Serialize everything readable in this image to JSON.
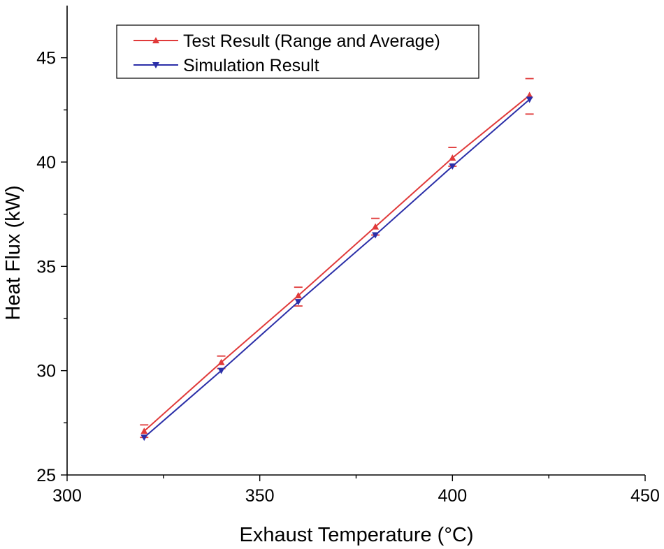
{
  "chart_data": {
    "type": "line",
    "title": "",
    "xlabel": "Exhaust Temperature (°C)",
    "ylabel": "Heat Flux (kW)",
    "xlim": [
      300,
      450
    ],
    "ylim": [
      25,
      47.5
    ],
    "xticks": [
      300,
      350,
      400,
      450
    ],
    "yticks": [
      25,
      30,
      35,
      40,
      45
    ],
    "x": [
      320,
      340,
      360,
      380,
      400,
      420
    ],
    "series": [
      {
        "name": "Test Result (Range and Average)",
        "color": "#e03a3a",
        "marker": "triangle-up",
        "values": [
          27.1,
          30.4,
          33.6,
          36.9,
          40.2,
          43.2
        ],
        "range_high": [
          27.4,
          30.7,
          34.0,
          37.3,
          40.7,
          44.0
        ],
        "range_low": [
          26.8,
          30.1,
          33.1,
          36.5,
          39.8,
          42.3
        ]
      },
      {
        "name": "Simulation Result",
        "color": "#2b2fa8",
        "marker": "triangle-down",
        "values": [
          26.8,
          30.0,
          33.3,
          36.5,
          39.8,
          43.0
        ]
      }
    ],
    "legend_position": "top-left",
    "grid": false
  }
}
